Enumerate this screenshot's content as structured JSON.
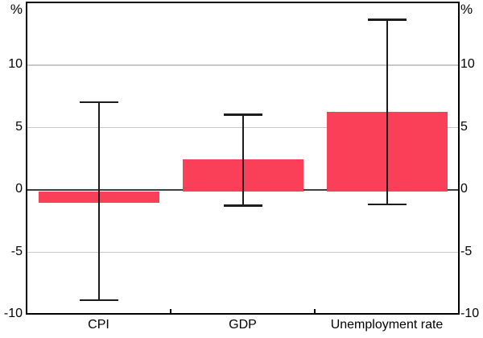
{
  "chart_data": {
    "type": "bar",
    "title": "",
    "categories": [
      "CPI",
      "GDP",
      "Unemployment rate"
    ],
    "values": [
      -1.1,
      2.4,
      6.2
    ],
    "error_bars": {
      "low": [
        -8.9,
        -1.3,
        -1.2
      ],
      "high": [
        7.0,
        6.0,
        13.6
      ]
    },
    "unit": "%",
    "unit_position": "top-both-sides",
    "ylim": [
      -10,
      15
    ],
    "yticks": [
      -10,
      -5,
      0,
      5,
      10
    ],
    "yticks_sides": "both",
    "grid": true,
    "legend": "none",
    "colors": {
      "bar": "#FA4058",
      "axis": "#000000",
      "grid": "#C9C9C9",
      "zero_line": "#404040",
      "error_bar": "#1C1C1C",
      "text": "#000000",
      "background": "#FFFFFF"
    }
  }
}
